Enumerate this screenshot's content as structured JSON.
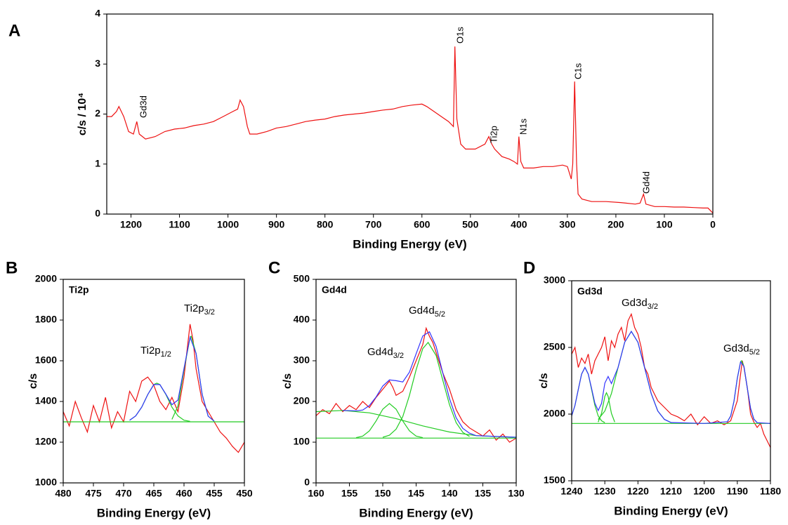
{
  "chart_data": [
    {
      "type": "line",
      "panel_label": "A",
      "xlabel": "Binding Energy (eV)",
      "ylabel": "c/s / 10⁴",
      "xlim": [
        1250,
        0
      ],
      "xticks": [
        1200,
        1100,
        1000,
        900,
        800,
        700,
        600,
        500,
        400,
        300,
        200,
        100,
        0
      ],
      "ylim": [
        0,
        4
      ],
      "yticks": [
        0,
        1,
        2,
        3,
        4
      ],
      "annotations": [
        "Gd3d",
        "O1s",
        "Ti2p",
        "N1s",
        "C1s",
        "Gd4d"
      ],
      "series": [
        {
          "color": "#ee1111",
          "x": [
            1250,
            1240,
            1230,
            1225,
            1215,
            1205,
            1195,
            1188,
            1183,
            1170,
            1150,
            1130,
            1110,
            1090,
            1070,
            1050,
            1030,
            1010,
            990,
            980,
            975,
            968,
            960,
            955,
            940,
            920,
            900,
            880,
            860,
            840,
            820,
            800,
            780,
            760,
            740,
            720,
            700,
            680,
            660,
            640,
            620,
            600,
            590,
            575,
            560,
            545,
            535,
            532,
            528,
            520,
            510,
            490,
            470,
            462,
            456,
            450,
            435,
            420,
            410,
            403,
            400,
            396,
            390,
            370,
            350,
            330,
            310,
            300,
            292,
            289,
            285,
            281,
            278,
            270,
            250,
            220,
            190,
            160,
            150,
            143,
            138,
            120,
            100,
            80,
            60,
            40,
            20,
            10,
            0
          ],
          "values": [
            1.95,
            1.95,
            2.05,
            2.15,
            1.95,
            1.65,
            1.6,
            1.85,
            1.6,
            1.5,
            1.55,
            1.65,
            1.7,
            1.72,
            1.77,
            1.8,
            1.85,
            1.95,
            2.05,
            2.1,
            2.28,
            2.15,
            1.75,
            1.6,
            1.6,
            1.65,
            1.72,
            1.75,
            1.8,
            1.85,
            1.88,
            1.9,
            1.95,
            1.98,
            2.0,
            2.02,
            2.05,
            2.08,
            2.1,
            2.15,
            2.18,
            2.2,
            2.15,
            2.05,
            1.95,
            1.85,
            1.75,
            3.35,
            1.9,
            1.4,
            1.3,
            1.3,
            1.4,
            1.55,
            1.4,
            1.3,
            1.15,
            1.1,
            1.05,
            1.0,
            1.55,
            1.05,
            0.92,
            0.92,
            0.95,
            0.95,
            0.98,
            0.95,
            0.7,
            1.0,
            2.65,
            1.0,
            0.4,
            0.3,
            0.25,
            0.25,
            0.23,
            0.2,
            0.22,
            0.4,
            0.2,
            0.15,
            0.15,
            0.14,
            0.14,
            0.13,
            0.12,
            0.12,
            0.02
          ]
        }
      ]
    },
    {
      "type": "line",
      "panel_label": "B",
      "inset_title": "Ti2p",
      "xlabel": "Binding Energy (eV)",
      "ylabel": "c/s",
      "xlim": [
        480,
        450
      ],
      "xticks": [
        480,
        475,
        470,
        465,
        460,
        455,
        450
      ],
      "ylim": [
        1000,
        2000
      ],
      "yticks": [
        1000,
        1200,
        1400,
        1600,
        1800,
        2000
      ],
      "peak_labels": [
        {
          "text": "Ti2p",
          "sub": "1/2"
        },
        {
          "text": "Ti2p",
          "sub": "3/2"
        }
      ],
      "series": [
        {
          "color": "#ee1111",
          "x": [
            480,
            479,
            478,
            477,
            476,
            475,
            474,
            473,
            472,
            471,
            470,
            469,
            468,
            467,
            466,
            465,
            464,
            463,
            462,
            461,
            460,
            459.5,
            459,
            458.5,
            458,
            457,
            456,
            455,
            454,
            453,
            452,
            451,
            450
          ],
          "values": [
            1350,
            1280,
            1400,
            1320,
            1250,
            1380,
            1300,
            1420,
            1270,
            1350,
            1300,
            1450,
            1400,
            1500,
            1520,
            1480,
            1400,
            1360,
            1420,
            1350,
            1520,
            1650,
            1780,
            1700,
            1560,
            1400,
            1350,
            1300,
            1250,
            1220,
            1180,
            1150,
            1200
          ]
        },
        {
          "color": "#22cc22",
          "x": [
            480,
            450
          ],
          "values": [
            1300,
            1300
          ]
        },
        {
          "color": "#22cc22",
          "x": [
            469,
            468,
            467,
            466,
            465,
            464.5,
            464,
            463,
            462,
            461,
            460,
            459
          ],
          "values": [
            1308,
            1329,
            1372,
            1434,
            1483,
            1490,
            1483,
            1434,
            1372,
            1329,
            1308,
            1302
          ]
        },
        {
          "color": "#22cc22",
          "x": [
            462,
            461,
            460,
            459,
            458.8,
            458,
            457,
            456,
            455
          ],
          "values": [
            1312,
            1378,
            1555,
            1714,
            1720,
            1636,
            1436,
            1328,
            1303
          ]
        },
        {
          "color": "#3333ff",
          "x": [
            469,
            468,
            467,
            466,
            465,
            464,
            463,
            462,
            461,
            460,
            459,
            458,
            457,
            456,
            455
          ],
          "values": [
            1308,
            1329,
            1372,
            1434,
            1483,
            1483,
            1436,
            1384,
            1407,
            1563,
            1716,
            1636,
            1436,
            1328,
            1303
          ]
        }
      ]
    },
    {
      "type": "line",
      "panel_label": "C",
      "inset_title": "Gd4d",
      "xlabel": "Binding Energy (eV)",
      "ylabel": "c/s",
      "xlim": [
        160,
        130
      ],
      "xticks": [
        160,
        155,
        150,
        145,
        140,
        135,
        130
      ],
      "ylim": [
        0,
        500
      ],
      "yticks": [
        0,
        100,
        200,
        300,
        400,
        500
      ],
      "peak_labels": [
        {
          "text": "Gd4d",
          "sub": "3/2"
        },
        {
          "text": "Gd4d",
          "sub": "5/2"
        }
      ],
      "series": [
        {
          "color": "#ee1111",
          "x": [
            160,
            159,
            158,
            157,
            156,
            155,
            154,
            153,
            152,
            151,
            150,
            149,
            148.5,
            148,
            147,
            146,
            145,
            144,
            143.5,
            143,
            142.5,
            142,
            141,
            140,
            139,
            138,
            137,
            136,
            135,
            134,
            133,
            132,
            131,
            130
          ],
          "values": [
            165,
            180,
            170,
            195,
            175,
            190,
            180,
            200,
            185,
            210,
            230,
            250,
            235,
            215,
            225,
            260,
            300,
            340,
            380,
            360,
            345,
            320,
            270,
            230,
            180,
            150,
            135,
            125,
            115,
            130,
            105,
            120,
            100,
            110
          ]
        },
        {
          "color": "#22cc22",
          "x": [
            160,
            130
          ],
          "values": [
            110,
            110
          ]
        },
        {
          "color": "#22cc22",
          "x": [
            160,
            156,
            152,
            148,
            144,
            140,
            136,
            130
          ],
          "values": [
            175,
            178,
            172,
            158,
            140,
            125,
            116,
            112
          ]
        },
        {
          "color": "#22cc22",
          "x": [
            154,
            153,
            152,
            151,
            150,
            149,
            148,
            147,
            146,
            145,
            144
          ],
          "values": [
            111,
            115,
            128,
            152,
            181,
            195,
            181,
            152,
            128,
            115,
            111
          ]
        },
        {
          "color": "#22cc22",
          "x": [
            150,
            149,
            148,
            147,
            146,
            145,
            144,
            143.2,
            142,
            141,
            140,
            139,
            138,
            137
          ],
          "values": [
            112,
            117,
            132,
            163,
            215,
            278,
            330,
            345,
            313,
            252,
            192,
            148,
            124,
            114
          ]
        },
        {
          "color": "#3333ff",
          "x": [
            156,
            154,
            153,
            152,
            151,
            150,
            149,
            148,
            147,
            146,
            145,
            144,
            143,
            142,
            141,
            140,
            139,
            138,
            137,
            136,
            130
          ],
          "values": [
            178,
            177,
            179,
            190,
            211,
            238,
            253,
            251,
            248,
            272,
            317,
            361,
            371,
            335,
            270,
            207,
            160,
            134,
            122,
            116,
            112
          ]
        }
      ]
    },
    {
      "type": "line",
      "panel_label": "D",
      "inset_title": "Gd3d",
      "xlabel": "Binding Energy (eV)",
      "ylabel": "c/s",
      "xlim": [
        1240,
        1180
      ],
      "xticks": [
        1240,
        1230,
        1220,
        1210,
        1200,
        1190,
        1180
      ],
      "ylim": [
        1500,
        3000
      ],
      "yticks": [
        1500,
        2000,
        2500,
        3000
      ],
      "peak_labels": [
        {
          "text": "Gd3d",
          "sub": "3/2"
        },
        {
          "text": "Gd3d",
          "sub": "5/2"
        }
      ],
      "series": [
        {
          "color": "#ee1111",
          "x": [
            1240,
            1239,
            1238,
            1237,
            1236,
            1235,
            1234,
            1233,
            1232,
            1231,
            1230,
            1229,
            1228,
            1227,
            1226,
            1225,
            1224,
            1223,
            1222,
            1221,
            1220,
            1219,
            1218,
            1217,
            1216,
            1215,
            1214,
            1212,
            1210,
            1208,
            1206,
            1204,
            1202,
            1200,
            1198,
            1196,
            1194,
            1192,
            1190,
            1189,
            1188.5,
            1188,
            1187,
            1186,
            1185,
            1184,
            1183,
            1182,
            1181,
            1180
          ],
          "values": [
            2450,
            2500,
            2350,
            2420,
            2380,
            2450,
            2300,
            2400,
            2450,
            2500,
            2580,
            2400,
            2550,
            2500,
            2600,
            2650,
            2550,
            2700,
            2750,
            2650,
            2600,
            2500,
            2350,
            2300,
            2200,
            2150,
            2100,
            2050,
            2000,
            1980,
            1950,
            2000,
            1920,
            1980,
            1930,
            1950,
            1920,
            1950,
            2100,
            2300,
            2400,
            2350,
            2200,
            2000,
            1940,
            1900,
            1930,
            1850,
            1800,
            1750
          ]
        },
        {
          "color": "#22cc22",
          "x": [
            1240,
            1180
          ],
          "values": [
            1930,
            1930
          ]
        },
        {
          "color": "#22cc22",
          "x": [
            1240,
            1239,
            1238,
            1237,
            1236,
            1235,
            1234,
            1233,
            1232,
            1231,
            1230
          ],
          "values": [
            1987,
            2066,
            2185,
            2300,
            2350,
            2300,
            2185,
            2066,
            1987,
            1950,
            1936
          ]
        },
        {
          "color": "#22cc22",
          "x": [
            1232,
            1231,
            1230,
            1229.5,
            1229,
            1228,
            1227
          ],
          "values": [
            1940,
            2005,
            2133,
            2160,
            2133,
            2005,
            1940
          ]
        },
        {
          "color": "#22cc22",
          "x": [
            1232,
            1230,
            1228,
            1226,
            1224,
            1222,
            1220,
            1218,
            1216,
            1214,
            1212,
            1210
          ],
          "values": [
            1960,
            2023,
            2154,
            2349,
            2539,
            2620,
            2539,
            2349,
            2154,
            2023,
            1960,
            1937
          ]
        },
        {
          "color": "#22cc22",
          "x": [
            1193,
            1192,
            1191,
            1190,
            1189,
            1188.7,
            1188,
            1187,
            1186,
            1185,
            1184
          ],
          "values": [
            1943,
            1986,
            2097,
            2268,
            2392,
            2400,
            2357,
            2197,
            2043,
            1962,
            1936
          ]
        },
        {
          "color": "#3333ff",
          "x": [
            1240,
            1239,
            1238,
            1237,
            1236,
            1235,
            1234,
            1233,
            1232,
            1231,
            1230,
            1229,
            1228,
            1226,
            1224,
            1222,
            1220,
            1218,
            1216,
            1214,
            1212,
            1210,
            1200,
            1193,
            1192,
            1191,
            1190,
            1189,
            1188,
            1187,
            1186,
            1185,
            1184,
            1180
          ],
          "values": [
            1987,
            2066,
            2185,
            2300,
            2350,
            2300,
            2193,
            2082,
            2027,
            2080,
            2232,
            2282,
            2229,
            2349,
            2539,
            2620,
            2539,
            2349,
            2154,
            2023,
            1960,
            1937,
            1930,
            1943,
            1986,
            2097,
            2268,
            2392,
            2357,
            2197,
            2043,
            1962,
            1936,
            1930
          ]
        }
      ]
    }
  ]
}
